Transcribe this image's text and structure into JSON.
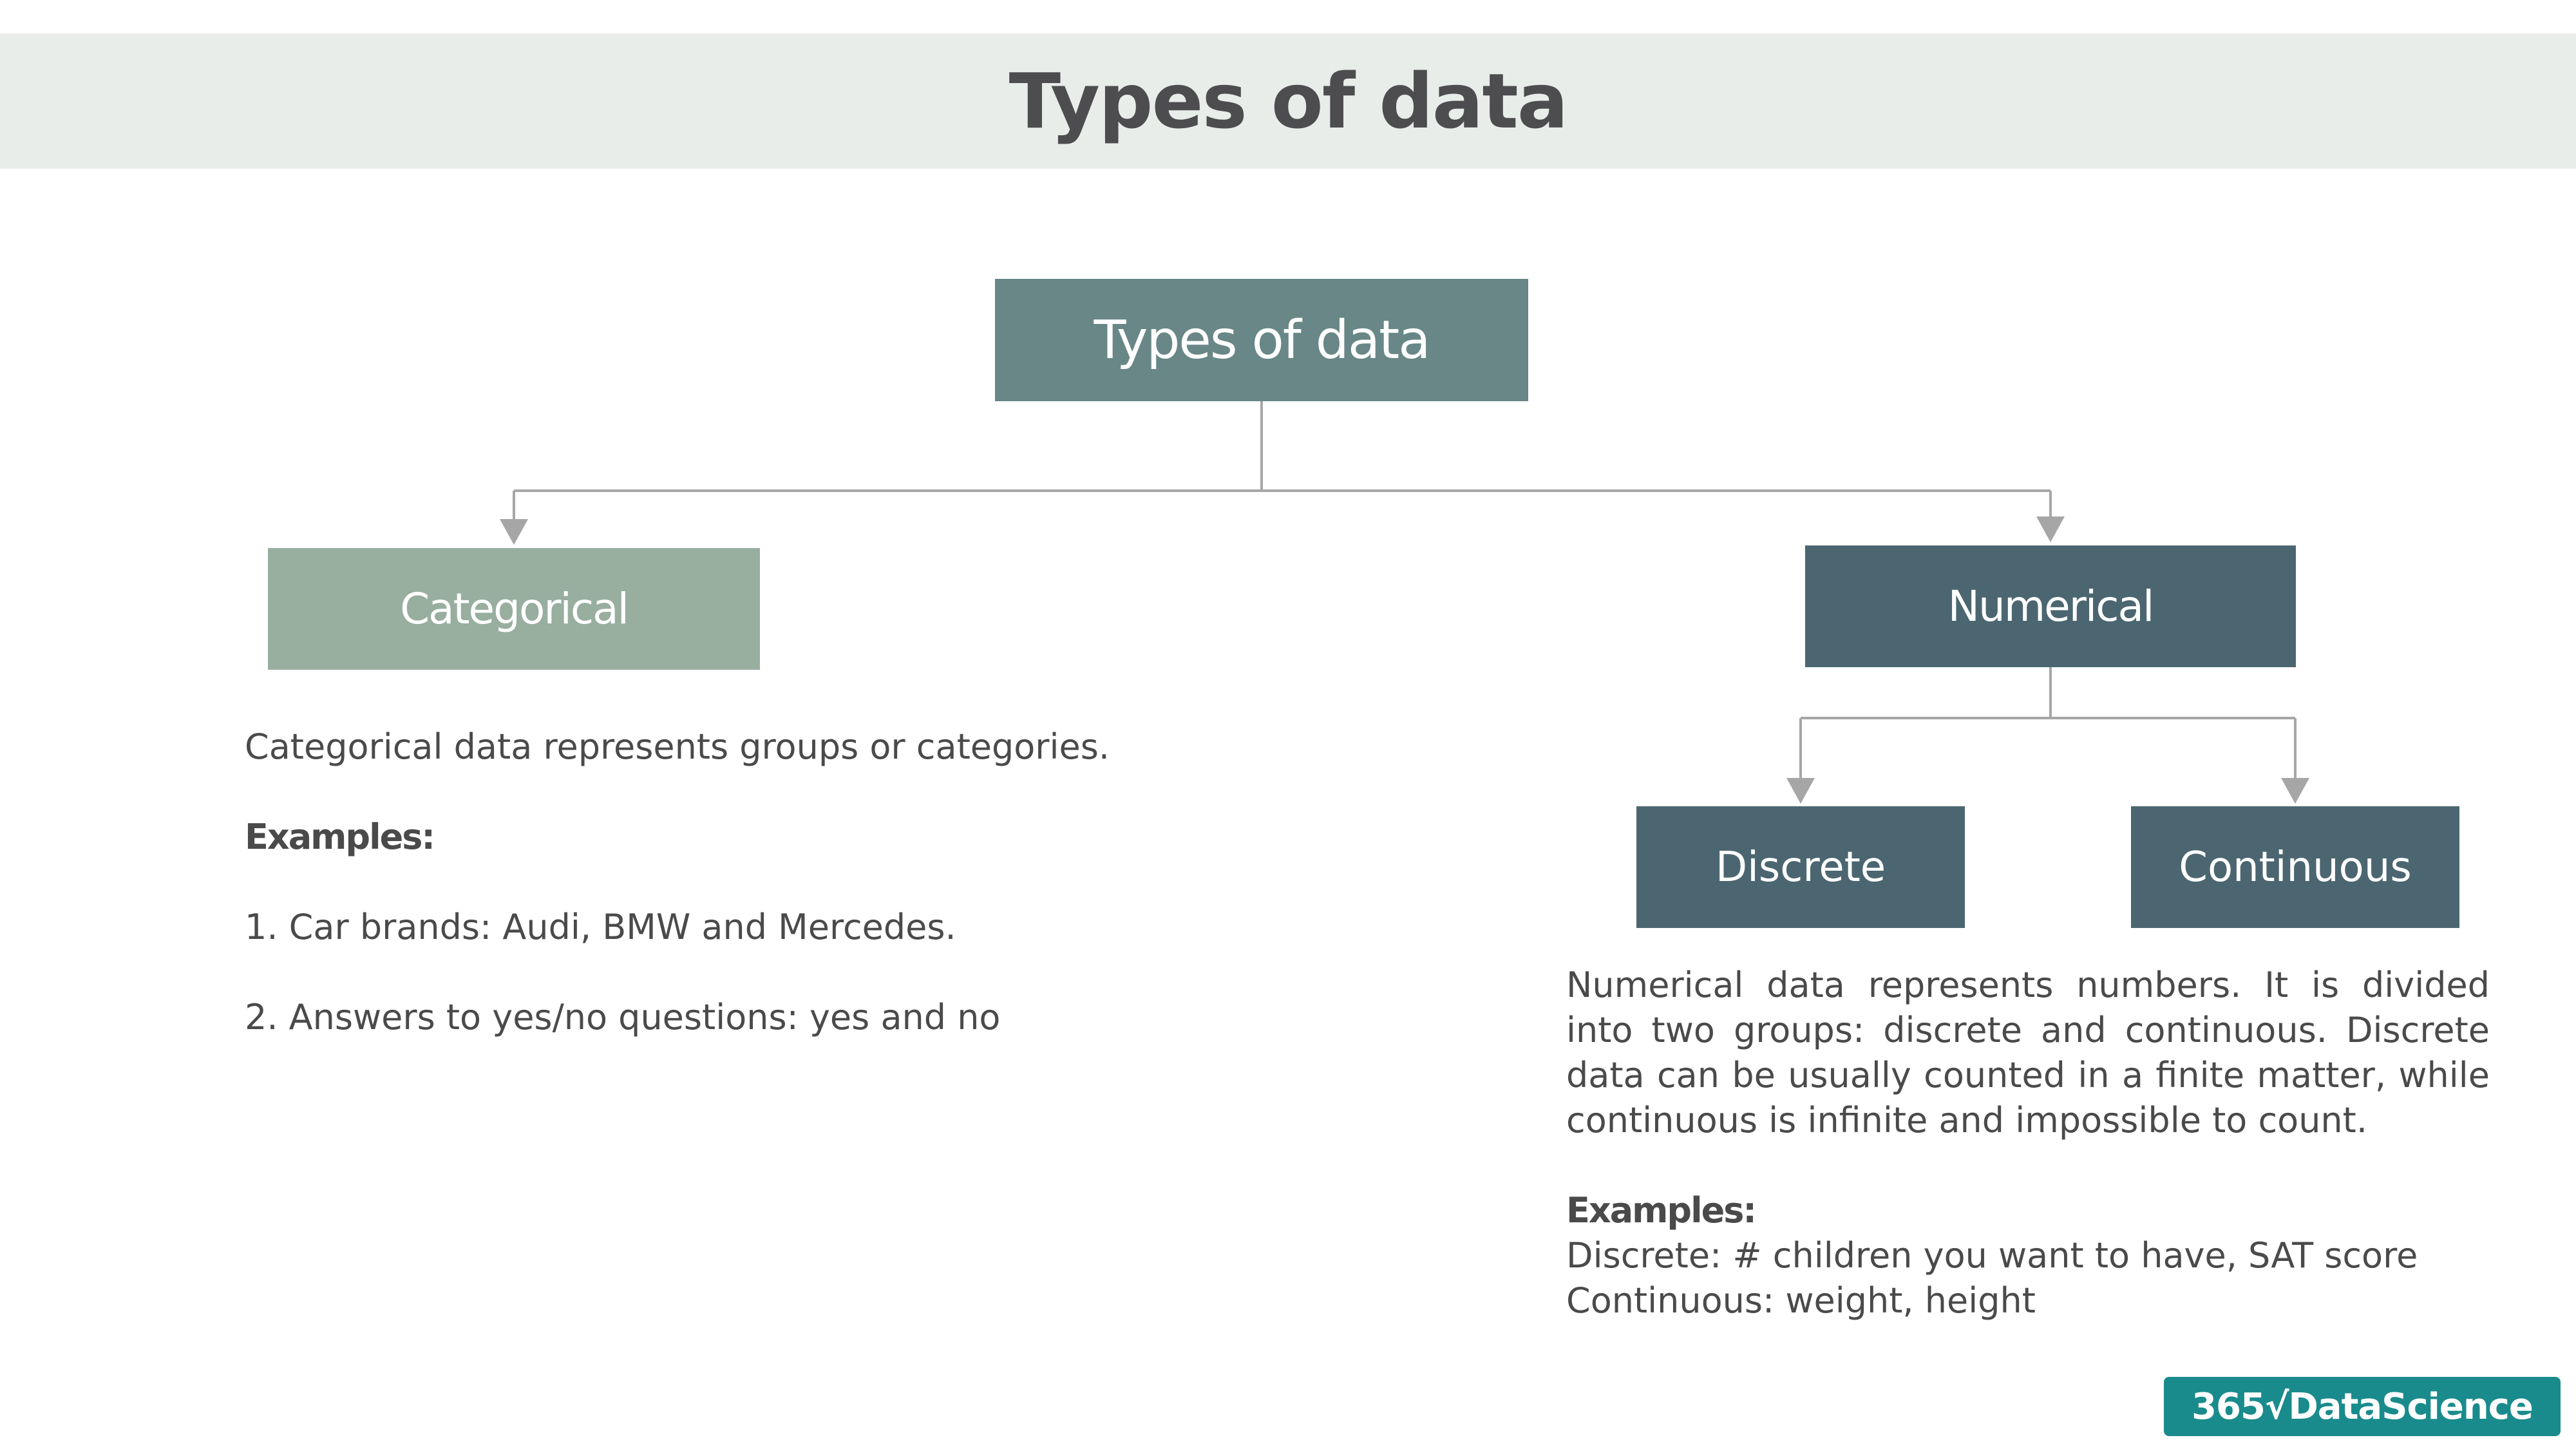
{
  "header": {
    "title": "Types of data"
  },
  "diagram": {
    "root": "Types of data",
    "categorical": "Categorical",
    "numerical": "Numerical",
    "discrete": "Discrete",
    "continuous": "Continuous"
  },
  "categorical_text": {
    "description": "Categorical data represents groups or categories.",
    "examples_label": "Examples:",
    "example_1": "1. Car brands: Audi, BMW and Mercedes.",
    "example_2": "2. Answers to yes/no questions: yes and no"
  },
  "numerical_text": {
    "description": "Numerical data represents numbers. It is divided into two groups: discrete and continuous. Discrete data can be usually counted in a finite matter, while continuous is infinite and impossible to count.",
    "examples_label": "Examples:",
    "example_discrete": "Discrete: # children you want to have, SAT score",
    "example_continuous": "Continuous: weight, height"
  },
  "logo": {
    "text": "365√DataScience"
  },
  "colors": {
    "header_band": "#e9edea",
    "root_box": "#688786",
    "categorical_box": "#98ae9f",
    "numerical_box": "#4b6670",
    "connector": "#a6a6a6",
    "logo": "#1a8b8c"
  }
}
